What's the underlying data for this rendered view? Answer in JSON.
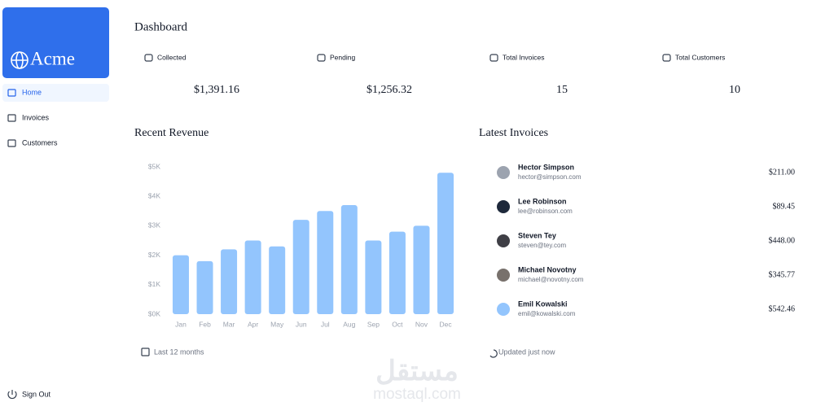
{
  "sidebar": {
    "brand": "Acme",
    "nav": [
      "Home",
      "Invoices",
      "Customers"
    ],
    "sign_out": "Sign Out"
  },
  "header": {
    "title": "Dashboard"
  },
  "cards": [
    {
      "label": "Collected",
      "value": "$1,391.16"
    },
    {
      "label": "Pending",
      "value": "$1,256.32"
    },
    {
      "label": "Total Invoices",
      "value": "15"
    },
    {
      "label": "Total Customers",
      "value": "10"
    }
  ],
  "chart_data": {
    "type": "bar",
    "title": "Recent Revenue",
    "categories": [
      "Jan",
      "Feb",
      "Mar",
      "Apr",
      "May",
      "Jun",
      "Jul",
      "Aug",
      "Sep",
      "Oct",
      "Nov",
      "Dec"
    ],
    "values": [
      2000,
      1800,
      2200,
      2500,
      2300,
      3200,
      3500,
      3700,
      2500,
      2800,
      3000,
      4800
    ],
    "color": "#93c5fd",
    "ylim": [
      0,
      5000
    ],
    "yticks": [
      {
        "value": 0,
        "label": "$0K"
      },
      {
        "value": 1000,
        "label": "$1K"
      },
      {
        "value": 2000,
        "label": "$2K"
      },
      {
        "value": 3000,
        "label": "$3K"
      },
      {
        "value": 4000,
        "label": "$4K"
      },
      {
        "value": 5000,
        "label": "$5K"
      }
    ],
    "footer": "Last 12 months"
  },
  "invoices": {
    "title": "Latest Invoices",
    "footer": "Updated just now",
    "rows": [
      {
        "name": "Hector Simpson",
        "email": "hector@simpson.com",
        "amount": "$211.00"
      },
      {
        "name": "Lee Robinson",
        "email": "lee@robinson.com",
        "amount": "$89.45"
      },
      {
        "name": "Steven Tey",
        "email": "steven@tey.com",
        "amount": "$448.00"
      },
      {
        "name": "Michael Novotny",
        "email": "michael@novotny.com",
        "amount": "$345.77"
      },
      {
        "name": "Emil Kowalski",
        "email": "emil@kowalski.com",
        "amount": "$542.46"
      }
    ]
  },
  "watermark": {
    "arabic": "مستقل",
    "latin": "mostaql.com"
  }
}
